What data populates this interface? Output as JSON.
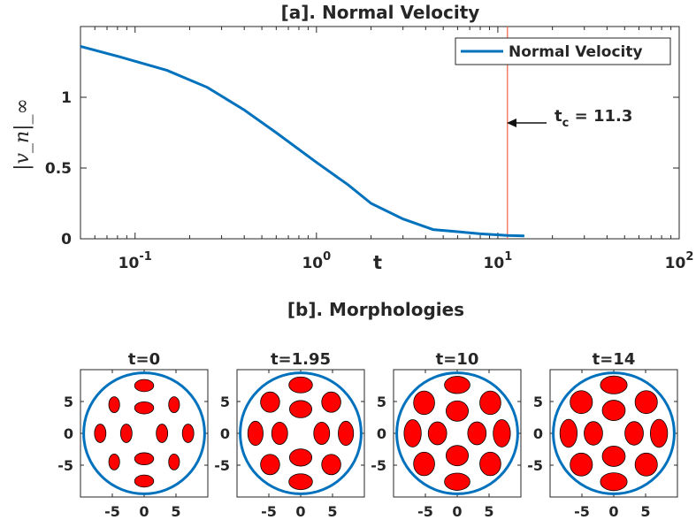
{
  "chart_data": [
    {
      "type": "line",
      "title": "[a]. Normal Velocity",
      "xlabel": "t",
      "ylabel": "|v_n|_∞",
      "xscale": "log",
      "xlim": [
        0.05,
        100
      ],
      "ylim": [
        0,
        1.5
      ],
      "xticks": [
        {
          "base": "10",
          "exp": "-1"
        },
        {
          "base": "10",
          "exp": "0"
        },
        {
          "base": "10",
          "exp": "1"
        },
        {
          "base": "10",
          "exp": "2"
        }
      ],
      "yticks": [
        "0",
        "0.5",
        "1"
      ],
      "legend": {
        "entries": [
          "Normal Velocity"
        ],
        "placement": "top-right"
      },
      "series": [
        {
          "name": "Normal Velocity",
          "color": "#0072BD",
          "x": [
            0.05,
            0.08,
            0.15,
            0.25,
            0.4,
            0.6,
            1.0,
            1.5,
            2.0,
            3.0,
            4.4,
            6.0,
            8.0,
            11.3,
            14.0
          ],
          "y": [
            1.36,
            1.29,
            1.19,
            1.07,
            0.91,
            0.75,
            0.54,
            0.38,
            0.25,
            0.14,
            0.065,
            0.05,
            0.035,
            0.023,
            0.02
          ]
        }
      ],
      "vline": {
        "x": 11.3,
        "color": "#F06040"
      },
      "annotation": {
        "text": "t",
        "subscript": "c",
        "rest": " = 11.3"
      }
    },
    {
      "type": "scatter",
      "title": "[b]. Morphologies",
      "panels": [
        {
          "title": "t=0",
          "blobs": [
            [
              0,
              7.5,
              1.5,
              0.95
            ],
            [
              0,
              4,
              1.5,
              0.95
            ],
            [
              0,
              -4,
              1.5,
              0.95
            ],
            [
              0,
              -7.5,
              1.5,
              0.95
            ],
            [
              -2.8,
              0,
              0.9,
              1.45
            ],
            [
              2.8,
              0,
              0.9,
              1.45
            ],
            [
              -6.9,
              0,
              0.9,
              1.45
            ],
            [
              6.9,
              0,
              0.9,
              1.45
            ],
            [
              -4.7,
              4.5,
              0.85,
              1.25
            ],
            [
              4.7,
              4.5,
              0.85,
              1.25
            ],
            [
              -4.7,
              -4.5,
              0.85,
              1.25
            ],
            [
              4.7,
              -4.5,
              0.85,
              1.25
            ]
          ]
        },
        {
          "title": "t=1.95",
          "blobs": [
            [
              0,
              7.6,
              1.85,
              1.25
            ],
            [
              0,
              3.8,
              1.75,
              1.35
            ],
            [
              0,
              -3.8,
              1.75,
              1.35
            ],
            [
              0,
              -7.6,
              1.85,
              1.25
            ],
            [
              -3.3,
              0,
              1.25,
              1.75
            ],
            [
              3.3,
              0,
              1.25,
              1.75
            ],
            [
              -7.1,
              0,
              1.2,
              1.9
            ],
            [
              7.1,
              0,
              1.2,
              1.9
            ],
            [
              -4.8,
              4.9,
              1.5,
              1.6
            ],
            [
              4.8,
              4.9,
              1.5,
              1.6
            ],
            [
              -4.8,
              -4.9,
              1.5,
              1.6
            ],
            [
              4.8,
              -4.9,
              1.5,
              1.6
            ]
          ]
        },
        {
          "title": "t=10",
          "blobs": [
            [
              0,
              7.6,
              2.0,
              1.35
            ],
            [
              0,
              3.5,
              1.75,
              1.6
            ],
            [
              0,
              -3.5,
              1.75,
              1.6
            ],
            [
              0,
              -7.6,
              2.0,
              1.35
            ],
            [
              -3.1,
              0,
              1.45,
              1.8
            ],
            [
              3.1,
              0,
              1.45,
              1.8
            ],
            [
              -7.0,
              0,
              1.35,
              2.15
            ],
            [
              7.0,
              0,
              1.35,
              2.15
            ],
            [
              -5.2,
              4.8,
              1.65,
              1.85
            ],
            [
              5.2,
              4.8,
              1.65,
              1.85
            ],
            [
              -5.2,
              -4.8,
              1.65,
              1.85
            ],
            [
              5.2,
              -4.8,
              1.65,
              1.85
            ]
          ]
        },
        {
          "title": "t=14",
          "blobs": [
            [
              0,
              7.6,
              2.1,
              1.4
            ],
            [
              0,
              3.6,
              1.8,
              1.6
            ],
            [
              0,
              -3.6,
              1.8,
              1.6
            ],
            [
              0,
              -7.6,
              2.1,
              1.4
            ],
            [
              -3.2,
              0,
              1.45,
              1.85
            ],
            [
              3.2,
              0,
              1.45,
              1.85
            ],
            [
              -7.1,
              0,
              1.35,
              2.2
            ],
            [
              7.1,
              0,
              1.35,
              2.2
            ],
            [
              -5.1,
              4.9,
              1.75,
              1.8
            ],
            [
              5.1,
              4.9,
              1.75,
              1.8
            ],
            [
              -5.1,
              -4.9,
              1.75,
              1.8
            ],
            [
              5.1,
              -4.9,
              1.75,
              1.8
            ]
          ]
        }
      ],
      "circle_radius": 9.5,
      "circle_color": "#0072BD",
      "blob_color": "#FF0000",
      "ylim": [
        -10,
        10
      ],
      "xlim": [
        -10,
        10
      ],
      "xticks": [
        "-5",
        "0",
        "5"
      ],
      "yticks": [
        "5",
        "0",
        "-5"
      ]
    }
  ]
}
